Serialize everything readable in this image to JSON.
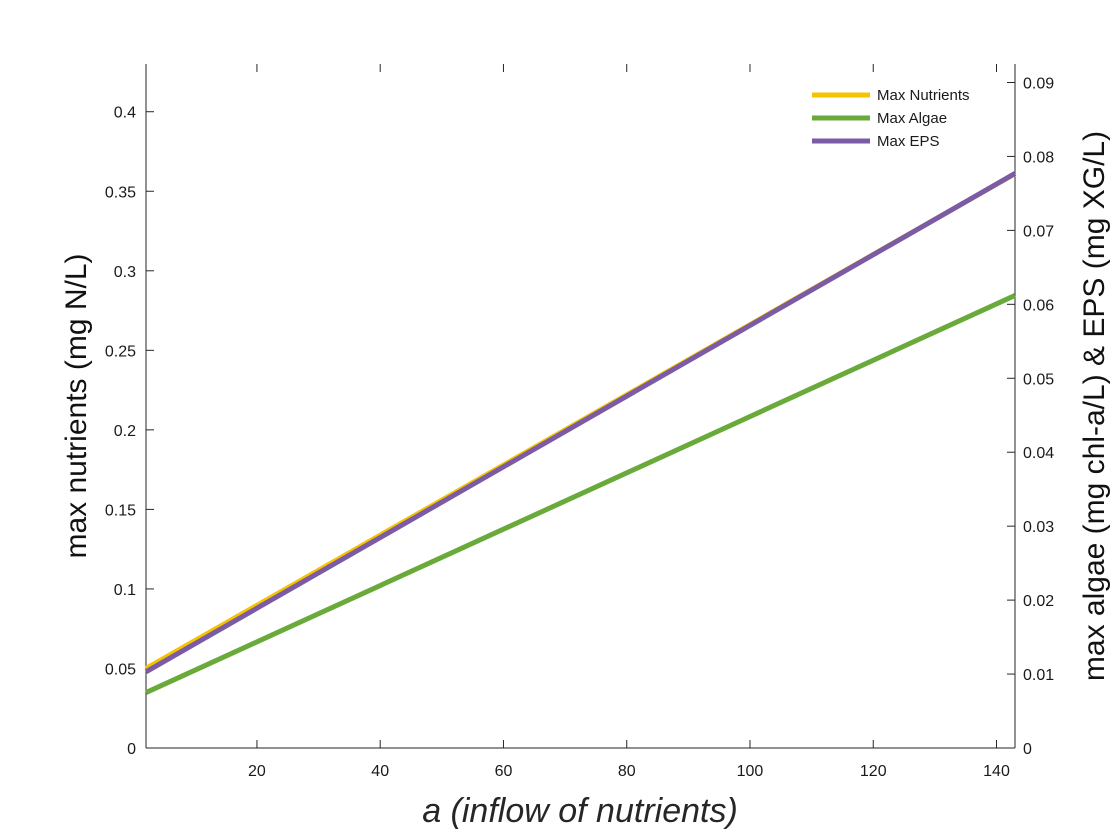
{
  "chart_data": {
    "type": "line",
    "title": "",
    "xlabel": "a (inflow of nutrients)",
    "ylabel_left": "max nutrients (mg N/L)",
    "ylabel_right": "max algae (mg chl-a/L) & EPS (mg XG/L)",
    "xlim": [
      2,
      143
    ],
    "ylim_left": [
      0,
      0.43
    ],
    "ylim_right": [
      0,
      0.0925
    ],
    "x_ticks": [
      20,
      40,
      60,
      80,
      100,
      120,
      140
    ],
    "x_tick_labels": [
      "20",
      "40",
      "60",
      "80",
      "100",
      "120",
      "140"
    ],
    "y_left_ticks": [
      0,
      0.05,
      0.1,
      0.15,
      0.2,
      0.25,
      0.3,
      0.35,
      0.4
    ],
    "y_left_tick_labels": [
      "0",
      "0.05",
      "0.1",
      "0.15",
      "0.2",
      "0.25",
      "0.3",
      "0.35",
      "0.4"
    ],
    "y_right_ticks": [
      0,
      0.01,
      0.02,
      0.03,
      0.04,
      0.05,
      0.06,
      0.07,
      0.08,
      0.09
    ],
    "y_right_tick_labels": [
      "0",
      "0.01",
      "0.02",
      "0.03",
      "0.04",
      "0.05",
      "0.06",
      "0.07",
      "0.08",
      "0.09"
    ],
    "grid": false,
    "legend_position": "top-right",
    "series": [
      {
        "name": "Max Nutrients",
        "axis": "left",
        "color": "#f5c400",
        "x": [
          2,
          143
        ],
        "y": [
          0.05,
          0.361
        ]
      },
      {
        "name": "Max Algae",
        "axis": "right",
        "color": "#6aaa3a",
        "x": [
          2,
          143
        ],
        "y": [
          0.0075,
          0.0612
        ]
      },
      {
        "name": "Max EPS",
        "axis": "right",
        "color": "#7b5aa6",
        "x": [
          2,
          143
        ],
        "y": [
          0.0103,
          0.0777
        ]
      }
    ]
  }
}
